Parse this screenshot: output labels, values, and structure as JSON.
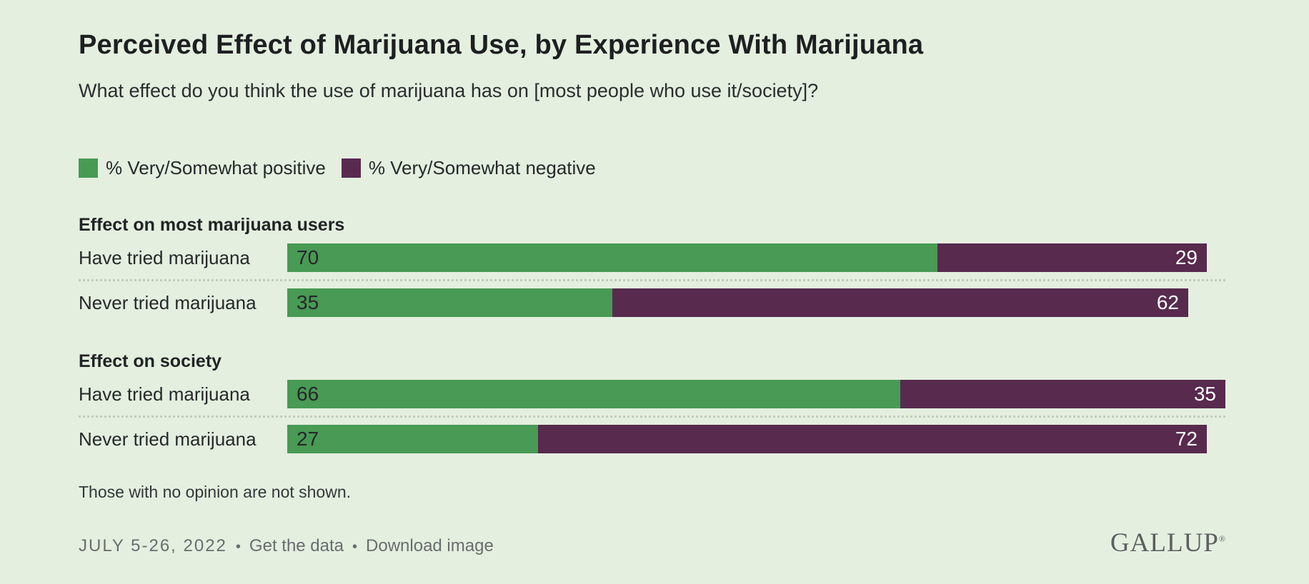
{
  "page": {
    "background_color": "#e4efdf"
  },
  "chart_data": {
    "type": "bar",
    "orientation": "horizontal",
    "stacked": true,
    "title": "Perceived Effect of Marijuana Use, by Experience With Marijuana",
    "subtitle": "What effect do you think the use of marijuana has on [most people who use it/society]?",
    "value_unit": "percent",
    "xlim": [
      0,
      100
    ],
    "grid": false,
    "legend_position": "top-left",
    "series": [
      {
        "name": "% Very/Somewhat positive",
        "color": "#489a54"
      },
      {
        "name": "% Very/Somewhat negative",
        "color": "#572a4e"
      }
    ],
    "groups": [
      {
        "heading": "Effect on most marijuana users",
        "rows": [
          {
            "label": "Have tried marijuana",
            "values": [
              70,
              29
            ]
          },
          {
            "label": "Never tried marijuana",
            "values": [
              35,
              62
            ]
          }
        ]
      },
      {
        "heading": "Effect on society",
        "rows": [
          {
            "label": "Have tried marijuana",
            "values": [
              66,
              35
            ]
          },
          {
            "label": "Never tried marijuana",
            "values": [
              27,
              72
            ]
          }
        ]
      }
    ],
    "note": "Those with no opinion are not shown."
  },
  "footer": {
    "date": "JULY 5-26, 2022",
    "separator": "•",
    "links": [
      "Get the data",
      "Download image"
    ],
    "logo": "GALLUP",
    "logo_registered": "®"
  }
}
